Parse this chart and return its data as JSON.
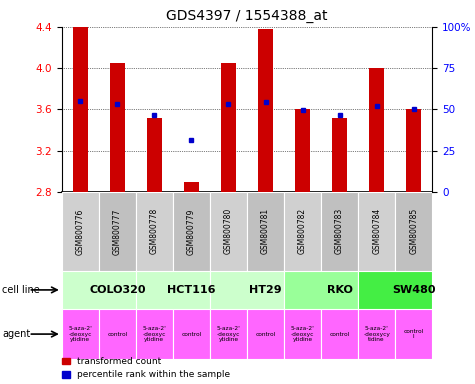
{
  "title": "GDS4397 / 1554388_at",
  "samples": [
    "GSM800776",
    "GSM800777",
    "GSM800778",
    "GSM800779",
    "GSM800780",
    "GSM800781",
    "GSM800782",
    "GSM800783",
    "GSM800784",
    "GSM800785"
  ],
  "red_values": [
    4.4,
    4.05,
    3.52,
    2.9,
    4.05,
    4.38,
    3.6,
    3.52,
    4.0,
    3.6
  ],
  "blue_values": [
    3.68,
    3.65,
    3.55,
    3.3,
    3.65,
    3.67,
    3.59,
    3.55,
    3.63,
    3.6
  ],
  "ylim_min": 2.8,
  "ylim_max": 4.4,
  "yticks_left": [
    2.8,
    3.2,
    3.6,
    4.0,
    4.4
  ],
  "yticks_right": [
    0,
    25,
    50,
    75,
    100
  ],
  "cell_lines": [
    {
      "name": "COLO320",
      "start": 0,
      "end": 2,
      "color": "#ccffcc"
    },
    {
      "name": "HCT116",
      "start": 2,
      "end": 4,
      "color": "#ccffcc"
    },
    {
      "name": "HT29",
      "start": 4,
      "end": 6,
      "color": "#ccffcc"
    },
    {
      "name": "RKO",
      "start": 6,
      "end": 8,
      "color": "#99ff99"
    },
    {
      "name": "SW480",
      "start": 8,
      "end": 10,
      "color": "#44ee44"
    }
  ],
  "agent_texts": [
    "5-aza-2'\n-deoxyc\nytidine",
    "control",
    "5-aza-2'\n-deoxyc\nytidine",
    "control",
    "5-aza-2'\n-deoxyc\nytidine",
    "control",
    "5-aza-2'\n-deoxyc\nytidine",
    "control",
    "5-aza-2'\n-deoxycy\ntidine",
    "control\nl"
  ],
  "agent_color": "#ff66ff",
  "bar_color": "#cc0000",
  "dot_color": "#0000cc",
  "bar_bottom": 2.8,
  "sample_shades": [
    "#d0d0d0",
    "#c0c0c0",
    "#d0d0d0",
    "#c0c0c0",
    "#d0d0d0",
    "#c0c0c0",
    "#d0d0d0",
    "#c0c0c0",
    "#d0d0d0",
    "#c0c0c0"
  ],
  "red_label": "transformed count",
  "blue_label": "percentile rank within the sample",
  "cell_line_label": "cell line",
  "agent_label": "agent",
  "title_fontsize": 10
}
